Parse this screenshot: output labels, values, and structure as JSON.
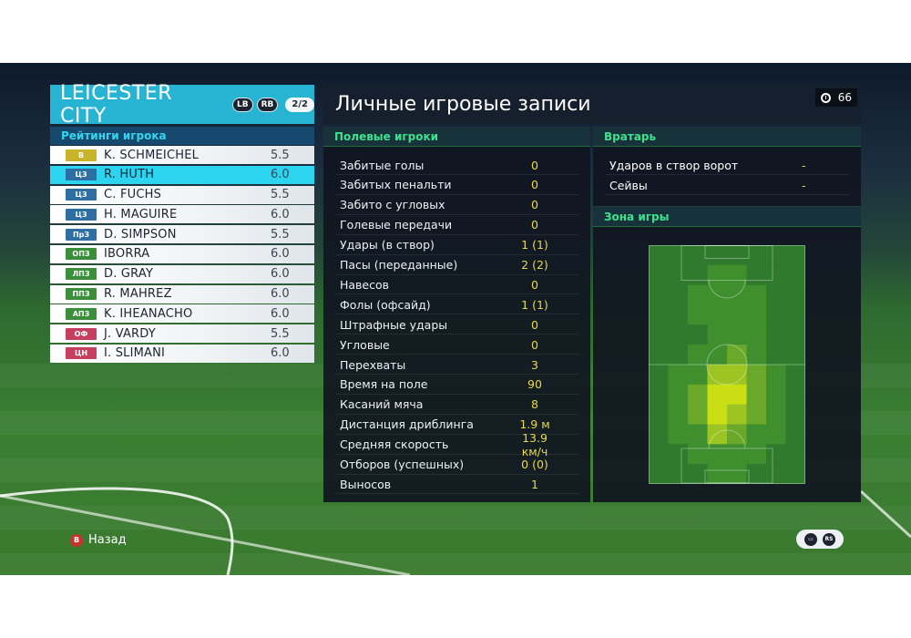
{
  "team": {
    "name": "LEICESTER CITY",
    "lb_label": "LB",
    "rb_label": "RB",
    "page": "2/2"
  },
  "ratings_title": "Рейтинги игрока",
  "players": [
    {
      "pos": "В",
      "pos_color": "#c9b32a",
      "name": "K. SCHMEICHEL",
      "rating": "5.5",
      "selected": false
    },
    {
      "pos": "ЦЗ",
      "pos_color": "#2d6ea3",
      "name": "R. HUTH",
      "rating": "6.0",
      "selected": true
    },
    {
      "pos": "ЦЗ",
      "pos_color": "#2d6ea3",
      "name": "C. FUCHS",
      "rating": "5.5",
      "selected": false
    },
    {
      "pos": "ЦЗ",
      "pos_color": "#2d6ea3",
      "name": "H. MAGUIRE",
      "rating": "6.0",
      "selected": false
    },
    {
      "pos": "ПрЗ",
      "pos_color": "#2d6ea3",
      "name": "D. SIMPSON",
      "rating": "5.5",
      "selected": false
    },
    {
      "pos": "ОПЗ",
      "pos_color": "#3b8f3a",
      "name": "IBORRA",
      "rating": "6.0",
      "selected": false
    },
    {
      "pos": "ЛПЗ",
      "pos_color": "#3b8f3a",
      "name": "D. GRAY",
      "rating": "6.0",
      "selected": false
    },
    {
      "pos": "ППЗ",
      "pos_color": "#3b8f3a",
      "name": "R. MAHREZ",
      "rating": "6.0",
      "selected": false
    },
    {
      "pos": "АПЗ",
      "pos_color": "#3b8f3a",
      "name": "K. IHEANACHO",
      "rating": "6.0",
      "selected": false
    },
    {
      "pos": "ОФ",
      "pos_color": "#c73f5e",
      "name": "J. VARDY",
      "rating": "5.5",
      "selected": false
    },
    {
      "pos": "ЦН",
      "pos_color": "#c73f5e",
      "name": "I. SLIMANI",
      "rating": "6.0",
      "selected": false
    }
  ],
  "main_title": "Личные игровые записи",
  "timer": "66",
  "field_section": "Полевые игроки",
  "field_stats": [
    {
      "label": "Забитые голы",
      "value": "0"
    },
    {
      "label": "Забитых пенальти",
      "value": "0"
    },
    {
      "label": "Забито с угловых",
      "value": "0"
    },
    {
      "label": "Голевые передачи",
      "value": "0"
    },
    {
      "label": "Удары (в створ)",
      "value": "1 (1)"
    },
    {
      "label": "Пасы (переданные)",
      "value": "2 (2)"
    },
    {
      "label": "Навесов",
      "value": "0"
    },
    {
      "label": "Фолы (офсайд)",
      "value": "1 (1)"
    },
    {
      "label": "Штрафные удары",
      "value": "0"
    },
    {
      "label": "Угловые",
      "value": "0"
    },
    {
      "label": "Перехваты",
      "value": "3"
    },
    {
      "label": "Время на поле",
      "value": "90"
    },
    {
      "label": "Касаний мяча",
      "value": "8"
    },
    {
      "label": "Дистанция дриблинга",
      "value": "1.9 м"
    },
    {
      "label": "Средняя скорость",
      "value": "13.9 км/ч"
    },
    {
      "label": "Отборов (успешных)",
      "value": "0 (0)"
    },
    {
      "label": "Выносов",
      "value": "1"
    }
  ],
  "gk_section": "Вратарь",
  "gk_stats": [
    {
      "label": "Ударов в створ ворот",
      "value": "-"
    },
    {
      "label": "Сейвы",
      "value": "-"
    }
  ],
  "zone_section": "Зона игры",
  "heatmap": {
    "cols": 8,
    "rows": 12,
    "cells": [
      [
        0,
        0,
        0,
        0,
        0,
        0,
        0,
        0
      ],
      [
        0,
        0,
        0,
        1,
        1,
        0,
        0,
        0
      ],
      [
        0,
        0,
        1,
        1,
        1,
        1,
        0,
        0
      ],
      [
        0,
        0,
        1,
        1,
        1,
        1,
        0,
        0
      ],
      [
        0,
        0,
        0,
        1,
        1,
        1,
        0,
        0
      ],
      [
        0,
        0,
        1,
        1,
        2,
        1,
        0,
        0
      ],
      [
        0,
        1,
        1,
        3,
        3,
        2,
        1,
        0
      ],
      [
        0,
        1,
        2,
        4,
        4,
        2,
        1,
        0
      ],
      [
        0,
        1,
        2,
        4,
        3,
        2,
        1,
        0
      ],
      [
        0,
        1,
        1,
        3,
        2,
        1,
        1,
        0
      ],
      [
        0,
        0,
        1,
        1,
        1,
        1,
        0,
        0
      ],
      [
        0,
        0,
        0,
        1,
        1,
        0,
        0,
        0
      ]
    ]
  },
  "footer": {
    "back_key": "B",
    "back_label": "Назад",
    "rs_label": "RS"
  }
}
